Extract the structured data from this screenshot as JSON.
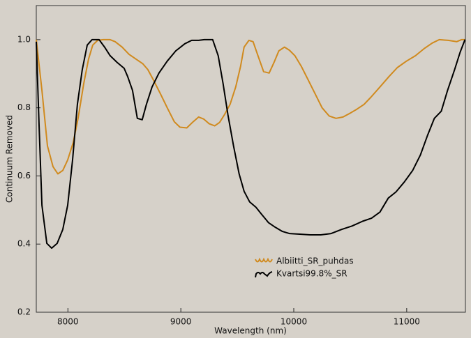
{
  "chart_data": {
    "type": "line",
    "xlabel": "Wavelength (nm)",
    "ylabel": "Continuum Removed",
    "xlim": [
      7720,
      11520
    ],
    "ylim": [
      0.2,
      1.1
    ],
    "xticks": [
      8000,
      9000,
      10000,
      11000
    ],
    "yticks": [
      0.2,
      0.4,
      0.6,
      0.8,
      {
        "value": 1,
        "label": "1.0"
      }
    ],
    "grid": false,
    "legend": "lower center",
    "series": [
      {
        "name": "Albiitti_SR_puhdas",
        "color": "#d08a1e",
        "x": [
          7720,
          7770,
          7819,
          7868,
          7911,
          7955,
          7998,
          8047,
          8090,
          8140,
          8183,
          8220,
          8263,
          8313,
          8374,
          8418,
          8480,
          8541,
          8603,
          8664,
          8708,
          8757,
          8819,
          8880,
          8942,
          8992,
          9053,
          9109,
          9158,
          9202,
          9251,
          9300,
          9343,
          9387,
          9436,
          9486,
          9529,
          9560,
          9603,
          9640,
          9683,
          9733,
          9782,
          9825,
          9868,
          9918,
          9961,
          10010,
          10066,
          10127,
          10189,
          10251,
          10313,
          10374,
          10436,
          10498,
          10560,
          10622,
          10683,
          10763,
          10844,
          10917,
          10998,
          11078,
          11152,
          11226,
          11288,
          11368,
          11442,
          11485,
          11516
        ],
        "values": [
          1.0,
          0.851,
          0.688,
          0.627,
          0.606,
          0.616,
          0.647,
          0.698,
          0.769,
          0.871,
          0.943,
          0.984,
          0.998,
          1.0,
          1.0,
          0.994,
          0.978,
          0.957,
          0.943,
          0.929,
          0.912,
          0.882,
          0.841,
          0.8,
          0.759,
          0.743,
          0.741,
          0.759,
          0.773,
          0.767,
          0.753,
          0.747,
          0.757,
          0.78,
          0.81,
          0.861,
          0.922,
          0.978,
          0.998,
          0.994,
          0.953,
          0.906,
          0.902,
          0.933,
          0.967,
          0.978,
          0.969,
          0.953,
          0.922,
          0.882,
          0.841,
          0.8,
          0.776,
          0.769,
          0.773,
          0.784,
          0.796,
          0.81,
          0.831,
          0.861,
          0.892,
          0.918,
          0.937,
          0.953,
          0.973,
          0.99,
          1.0,
          0.998,
          0.994,
          1.0,
          1.0
        ]
      },
      {
        "name": "Kvartsi99.8%_SR",
        "color": "#000000",
        "x": [
          7720,
          7745,
          7770,
          7813,
          7856,
          7905,
          7955,
          7998,
          8041,
          8084,
          8127,
          8171,
          8214,
          8276,
          8325,
          8374,
          8436,
          8498,
          8529,
          8572,
          8615,
          8658,
          8695,
          8745,
          8806,
          8880,
          8955,
          9035,
          9096,
          9158,
          9207,
          9282,
          9331,
          9374,
          9417,
          9467,
          9516,
          9560,
          9609,
          9665,
          9714,
          9776,
          9838,
          9899,
          9961,
          10053,
          10146,
          10239,
          10331,
          10424,
          10516,
          10609,
          10689,
          10763,
          10837,
          10905,
          10979,
          11053,
          11121,
          11183,
          11245,
          11306,
          11362,
          11424,
          11473,
          11516
        ],
        "values": [
          0.994,
          0.749,
          0.514,
          0.402,
          0.388,
          0.402,
          0.443,
          0.514,
          0.647,
          0.81,
          0.912,
          0.984,
          1.0,
          1.0,
          0.978,
          0.953,
          0.933,
          0.916,
          0.892,
          0.851,
          0.769,
          0.765,
          0.81,
          0.861,
          0.902,
          0.937,
          0.967,
          0.988,
          0.998,
          0.998,
          1.0,
          1.0,
          0.953,
          0.871,
          0.78,
          0.688,
          0.606,
          0.555,
          0.524,
          0.508,
          0.488,
          0.463,
          0.449,
          0.437,
          0.431,
          0.429,
          0.427,
          0.427,
          0.431,
          0.443,
          0.453,
          0.467,
          0.476,
          0.494,
          0.535,
          0.553,
          0.582,
          0.616,
          0.661,
          0.718,
          0.769,
          0.79,
          0.851,
          0.912,
          0.963,
          1.0
        ]
      }
    ]
  }
}
